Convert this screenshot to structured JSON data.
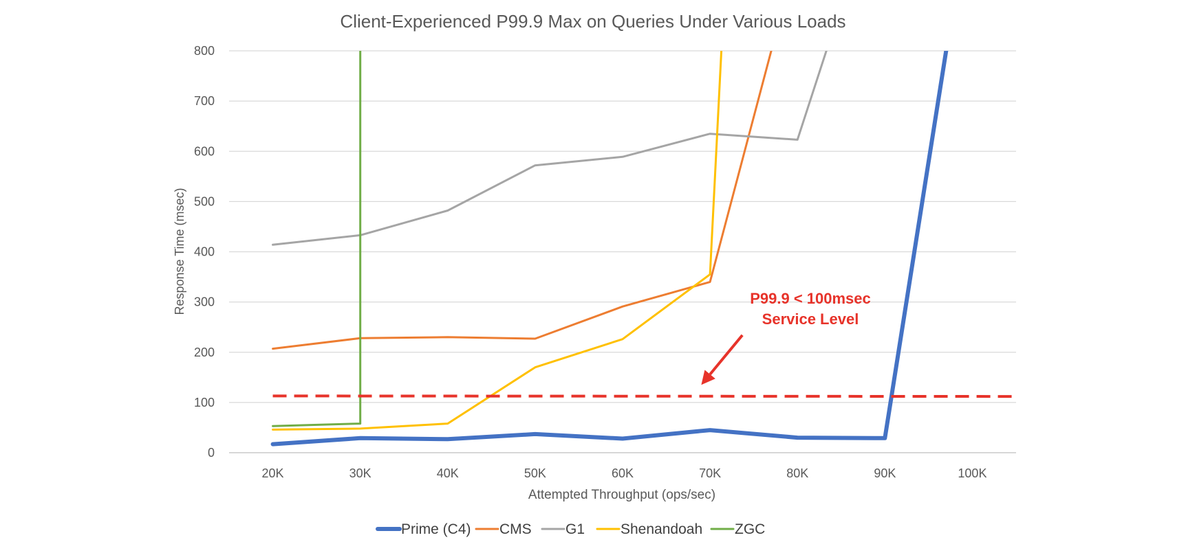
{
  "chart_data": {
    "type": "line",
    "title": "Client-Experienced P99.9 Max on Queries Under Various Loads",
    "xlabel": "Attempted Throughput (ops/sec)",
    "ylabel": "Response Time (msec)",
    "categories": [
      "20K",
      "30K",
      "40K",
      "50K",
      "60K",
      "70K",
      "80K",
      "90K",
      "100K"
    ],
    "x": [
      20,
      30,
      40,
      50,
      60,
      70,
      80,
      90,
      100
    ],
    "ylim": [
      0,
      800
    ],
    "yticks": [
      0,
      100,
      200,
      300,
      400,
      500,
      600,
      700,
      800
    ],
    "grid": true,
    "legend_position": "bottom",
    "series": [
      {
        "name": "Prime (C4)",
        "color": "#4472C4",
        "width": "thick",
        "points": [
          [
            20,
            17
          ],
          [
            30,
            29
          ],
          [
            40,
            27
          ],
          [
            50,
            37
          ],
          [
            60,
            28
          ],
          [
            70,
            45
          ],
          [
            80,
            30
          ],
          [
            90,
            29
          ],
          [
            97,
            800
          ]
        ]
      },
      {
        "name": "CMS",
        "color": "#ED7D31",
        "width": "normal",
        "points": [
          [
            20,
            207
          ],
          [
            30,
            228
          ],
          [
            40,
            230
          ],
          [
            50,
            227
          ],
          [
            60,
            291
          ],
          [
            70,
            340
          ],
          [
            77,
            800
          ]
        ]
      },
      {
        "name": "G1",
        "color": "#A5A5A5",
        "width": "normal",
        "points": [
          [
            20,
            414
          ],
          [
            30,
            433
          ],
          [
            40,
            482
          ],
          [
            50,
            572
          ],
          [
            60,
            589
          ],
          [
            70,
            635
          ],
          [
            80,
            623
          ],
          [
            83.3,
            800
          ]
        ]
      },
      {
        "name": "Shenandoah",
        "color": "#FFC000",
        "width": "normal",
        "points": [
          [
            20,
            46
          ],
          [
            30,
            48
          ],
          [
            40,
            58
          ],
          [
            50,
            170
          ],
          [
            60,
            226
          ],
          [
            70,
            355
          ],
          [
            71.3,
            800
          ]
        ]
      },
      {
        "name": "ZGC",
        "color": "#70AD47",
        "width": "normal",
        "points": [
          [
            20,
            53
          ],
          [
            30,
            58
          ],
          [
            30,
            800
          ]
        ]
      }
    ],
    "annotations": [
      {
        "text": "P99.9 < 100msec",
        "kind": "label",
        "color": "#E7332A"
      },
      {
        "text": "Service Level",
        "kind": "label",
        "color": "#E7332A"
      },
      {
        "kind": "reference-line",
        "style": "dashed",
        "color": "#E7332A",
        "from": [
          20,
          113
        ],
        "to": [
          105,
          112
        ]
      },
      {
        "kind": "arrow",
        "color": "#E7332A",
        "from": [
          73.7,
          234
        ],
        "to": [
          69,
          135
        ]
      }
    ]
  }
}
